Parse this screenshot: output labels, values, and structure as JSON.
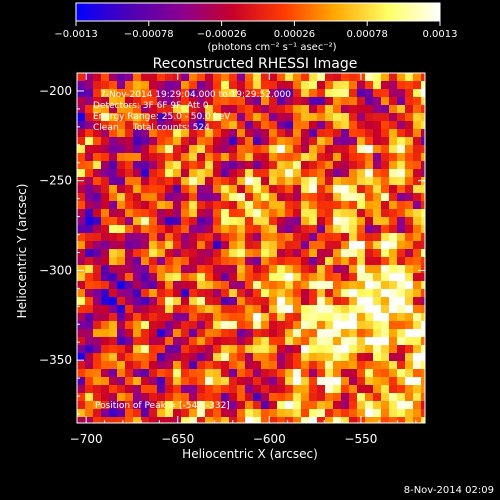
{
  "chart_data": {
    "type": "heatmap",
    "title": "Reconstructed RHESSI Image",
    "xlabel": "Heliocentric X (arcsec)",
    "ylabel": "Heliocentric Y (arcsec)",
    "xlim": [
      -705,
      -515
    ],
    "ylim": [
      -385,
      -190
    ],
    "x_ticks": [
      -700,
      -650,
      -600,
      -550
    ],
    "y_ticks": [
      -200,
      -250,
      -300,
      -350
    ],
    "x_tick_labels": [
      "−700",
      "−650",
      "−600",
      "−550"
    ],
    "y_tick_labels": [
      "−200",
      "−250",
      "−300",
      "−350"
    ],
    "colorbar": {
      "ticks": [
        -0.0013,
        -0.00078,
        -0.00026,
        0.00026,
        0.00078,
        0.0013
      ],
      "tick_labels": [
        "−0.0013",
        "−0.00078",
        "−0.00026",
        "0.00026",
        "0.00078",
        "0.0013"
      ],
      "units_label": "(photons cm⁻² s⁻¹ asec⁻²)",
      "range": [
        -0.0013,
        0.0013
      ],
      "colormap": [
        "#0000ff",
        "#4a00b8",
        "#8a0090",
        "#c8002a",
        "#ff3a00",
        "#ffa800",
        "#ffff66",
        "#ffffff"
      ]
    },
    "peak": {
      "x": -547,
      "y": -332
    },
    "annotations": [
      "7-Nov-2014 19:29:04.000 to 19:29:52.000",
      "Detectors: 3F 6F 9F, Att 0",
      "Energy Range: 25.0 - 50.0 keV",
      "Clean     Total counts: 524.",
      "Position of Peak = [-547,-332]"
    ],
    "grid": false
  },
  "footer": {
    "timestamp": "8-Nov-2014 02:09"
  },
  "colors": {
    "axes": "#ffffff",
    "background": "#000000"
  }
}
